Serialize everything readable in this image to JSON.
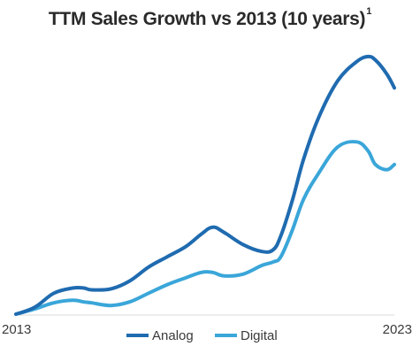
{
  "chart_data": {
    "type": "line",
    "title": "TTM Sales Growth vs 2013 (10 years)",
    "title_superscript": "1",
    "xlabel": "",
    "ylabel": "",
    "x_ticks": [
      "2013",
      "2023"
    ],
    "x": [
      2013.0,
      2013.5,
      2014.0,
      2014.5,
      2014.8,
      2015.0,
      2015.5,
      2016.0,
      2016.5,
      2017.0,
      2017.5,
      2017.9,
      2018.2,
      2018.5,
      2019.0,
      2019.5,
      2019.8,
      2020.0,
      2020.3,
      2020.6,
      2021.0,
      2021.5,
      2022.0,
      2022.3,
      2022.5,
      2022.8,
      2023.0
    ],
    "series": [
      {
        "name": "Analog",
        "color": "#1f6bb0",
        "values": [
          0,
          8,
          24,
          30,
          30,
          28,
          29,
          38,
          54,
          66,
          78,
          92,
          100,
          94,
          80,
          72,
          74,
          90,
          130,
          178,
          226,
          268,
          290,
          296,
          292,
          276,
          260
        ]
      },
      {
        "name": "Digital",
        "color": "#3aa6d9",
        "values": [
          0,
          6,
          13,
          16,
          14,
          13,
          10,
          14,
          24,
          34,
          42,
          48,
          48,
          44,
          46,
          56,
          60,
          66,
          96,
          132,
          162,
          192,
          198,
          188,
          172,
          166,
          172
        ]
      }
    ],
    "ylim": [
      0,
      300
    ],
    "grid": false,
    "legend": "bottom-center"
  }
}
